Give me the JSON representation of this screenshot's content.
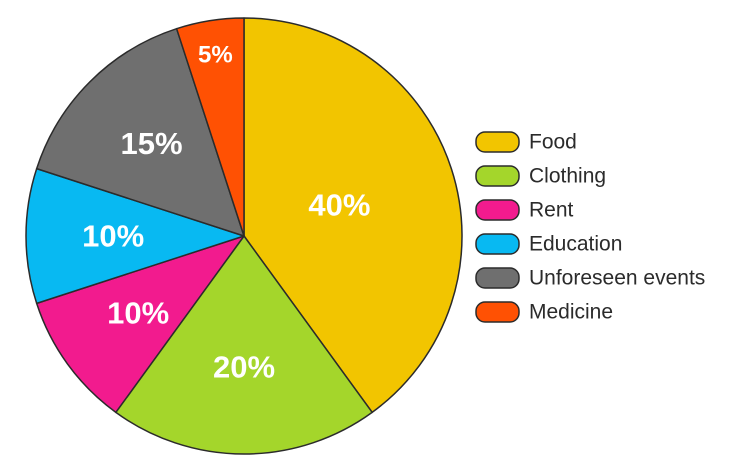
{
  "chart_data": {
    "type": "pie",
    "title": "",
    "categories": [
      "Food",
      "Clothing",
      "Rent",
      "Education",
      "Unforeseen events",
      "Medicine"
    ],
    "values": [
      40,
      20,
      10,
      10,
      15,
      5
    ],
    "labels": [
      "40%",
      "20%",
      "10%",
      "10%",
      "15%",
      "5%"
    ],
    "colors": [
      "#F2C500",
      "#A4D62B",
      "#F21B8E",
      "#08B9F2",
      "#6F6F6F",
      "#FF5103"
    ],
    "start": "12 o'clock",
    "direction": "clockwise",
    "legend": {
      "position": "right",
      "entries": [
        "Food",
        "Clothing",
        "Rent",
        "Education",
        "Unforeseen events",
        "Medicine"
      ]
    }
  }
}
